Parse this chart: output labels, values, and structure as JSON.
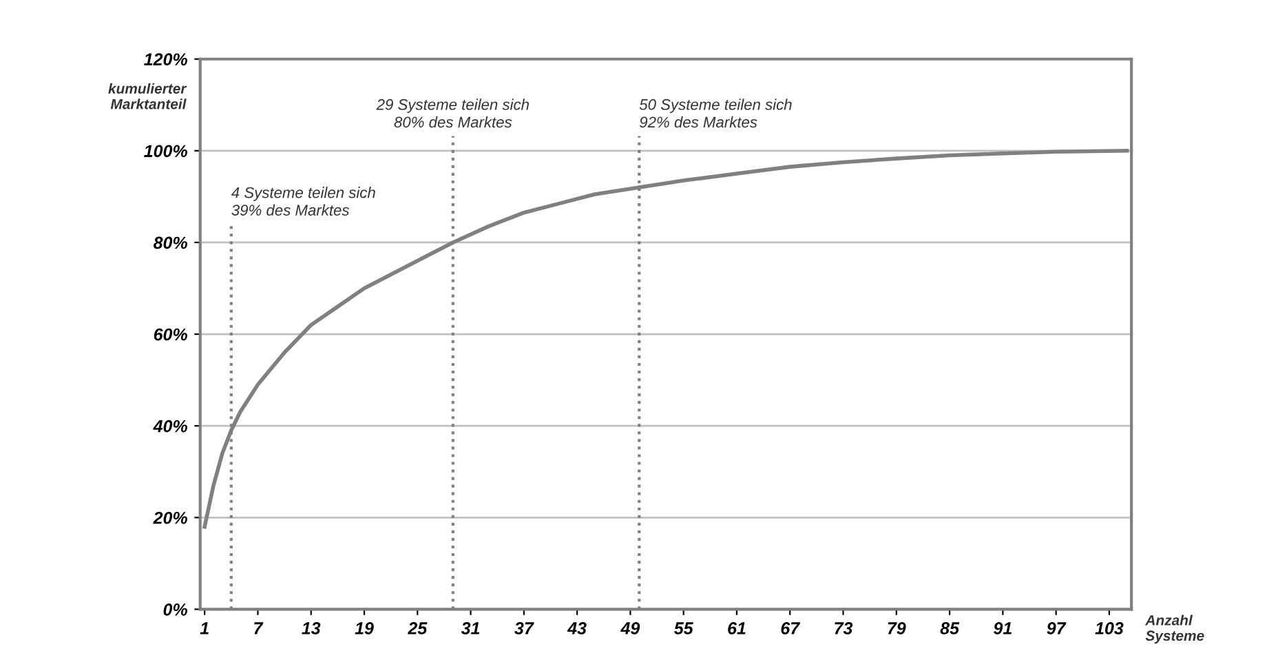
{
  "chart_data": {
    "type": "line",
    "xlabel": "Anzahl Systeme",
    "ylabel": "kumulierter Marktanteil",
    "x": [
      1,
      2,
      3,
      4,
      5,
      7,
      10,
      13,
      16,
      19,
      22,
      25,
      29,
      33,
      37,
      41,
      45,
      50,
      55,
      61,
      67,
      73,
      79,
      85,
      91,
      97,
      105
    ],
    "series": [
      {
        "color": "#808080",
        "values": [
          18,
          27,
          34,
          39,
          43,
          49,
          56,
          62,
          66,
          70,
          73,
          76,
          80,
          83.5,
          86.5,
          88.5,
          90.5,
          92,
          93.5,
          95,
          96.5,
          97.5,
          98.3,
          99,
          99.4,
          99.8,
          100
        ]
      }
    ],
    "xlim": [
      0.5,
      105.5
    ],
    "xticks": [
      1,
      7,
      13,
      19,
      25,
      31,
      37,
      43,
      49,
      55,
      61,
      67,
      73,
      79,
      85,
      91,
      97,
      103
    ],
    "ylim": [
      0,
      120
    ],
    "yticks": [
      {
        "value": 0,
        "label": "0%"
      },
      {
        "value": 20,
        "label": "20%"
      },
      {
        "value": 40,
        "label": "40%"
      },
      {
        "value": 60,
        "label": "60%"
      },
      {
        "value": 80,
        "label": "80%"
      },
      {
        "value": 100,
        "label": "100%"
      },
      {
        "value": 120,
        "label": "120%"
      }
    ],
    "grid": "y",
    "marker": "none",
    "line_style": "solid",
    "ref_lines": [
      {
        "axis": "x",
        "value": 4,
        "label": "4 Systeme teilen sich\n39% des Marktes",
        "color": "#808080",
        "line_style": "dotted"
      },
      {
        "axis": "x",
        "value": 29,
        "label": "29 Systeme teilen sich\n80% des Marktes",
        "color": "#808080",
        "line_style": "dotted"
      },
      {
        "axis": "x",
        "value": 50,
        "label": "50 Systeme teilen sich\n92% des Marktes",
        "color": "#808080",
        "line_style": "dotted"
      }
    ]
  }
}
